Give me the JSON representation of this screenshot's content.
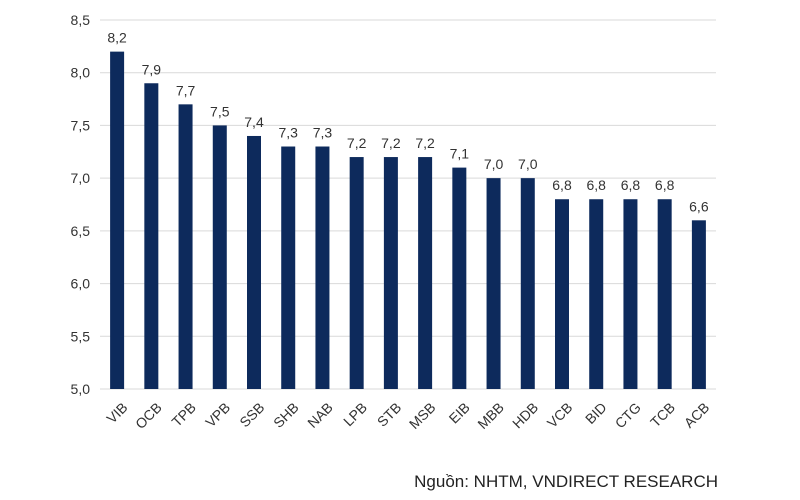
{
  "chart_data": {
    "type": "bar",
    "title": "",
    "xlabel": "",
    "ylabel": "",
    "categories": [
      "VIB",
      "OCB",
      "TPB",
      "VPB",
      "SSB",
      "SHB",
      "NAB",
      "LPB",
      "STB",
      "MSB",
      "EIB",
      "MBB",
      "HDB",
      "VCB",
      "BID",
      "CTG",
      "TCB",
      "ACB"
    ],
    "values": [
      8.2,
      7.9,
      7.7,
      7.5,
      7.4,
      7.3,
      7.3,
      7.2,
      7.2,
      7.2,
      7.1,
      7.0,
      7.0,
      6.8,
      6.8,
      6.8,
      6.8,
      6.6
    ],
    "value_labels": [
      "8,2",
      "7,9",
      "7,7",
      "7,5",
      "7,4",
      "7,3",
      "7,3",
      "7,2",
      "7,2",
      "7,2",
      "7,1",
      "7,0",
      "7,0",
      "6,8",
      "6,8",
      "6,8",
      "6,8",
      "6,6"
    ],
    "ylim": [
      5.0,
      8.5
    ],
    "yticks": [
      5.0,
      5.5,
      6.0,
      6.5,
      7.0,
      7.5,
      8.0,
      8.5
    ],
    "ytick_labels": [
      "5,0",
      "5,5",
      "6,0",
      "6,5",
      "7,0",
      "7,5",
      "8,0",
      "8,5"
    ],
    "grid": true,
    "legend": "none",
    "bar_color": "#0d2a5c",
    "grid_color": "#d9d9d9"
  },
  "source_note": "Nguồn: NHTM, VNDIRECT RESEARCH"
}
